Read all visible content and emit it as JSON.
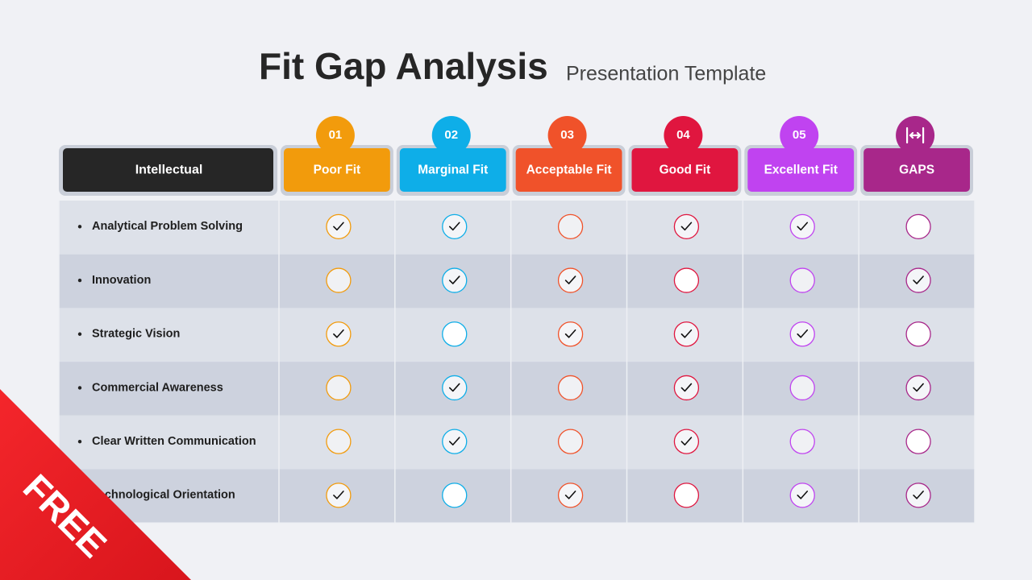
{
  "header": {
    "title": "Fit Gap Analysis",
    "subtitle": "Presentation Template"
  },
  "table": {
    "corner": "Intellectual",
    "columns": [
      {
        "number": "01",
        "label": "Poor Fit",
        "color": "#f29b0c"
      },
      {
        "number": "02",
        "label": "Marginal Fit",
        "color": "#0eaee8"
      },
      {
        "number": "03",
        "label": "Acceptable Fit",
        "color": "#f0522a"
      },
      {
        "number": "04",
        "label": "Good Fit",
        "color": "#e0163f"
      },
      {
        "number": "05",
        "label": "Excellent Fit",
        "color": "#c043f0"
      },
      {
        "label": "GAPS",
        "color": "#a8278a"
      }
    ],
    "rows": [
      {
        "label": "Analytical Problem Solving",
        "checks": [
          true,
          true,
          false,
          true,
          true,
          false
        ]
      },
      {
        "label": "Innovation",
        "checks": [
          false,
          true,
          true,
          false,
          false,
          true
        ]
      },
      {
        "label": "Strategic Vision",
        "checks": [
          true,
          false,
          true,
          true,
          true,
          false
        ]
      },
      {
        "label": "Commercial Awareness",
        "checks": [
          false,
          true,
          false,
          true,
          false,
          true
        ]
      },
      {
        "label": "Clear Written Communication",
        "checks": [
          false,
          true,
          false,
          true,
          false,
          false
        ]
      },
      {
        "label": "Technological Orientation",
        "checks": [
          true,
          false,
          true,
          false,
          true,
          true
        ]
      }
    ]
  },
  "badge": "FREE"
}
